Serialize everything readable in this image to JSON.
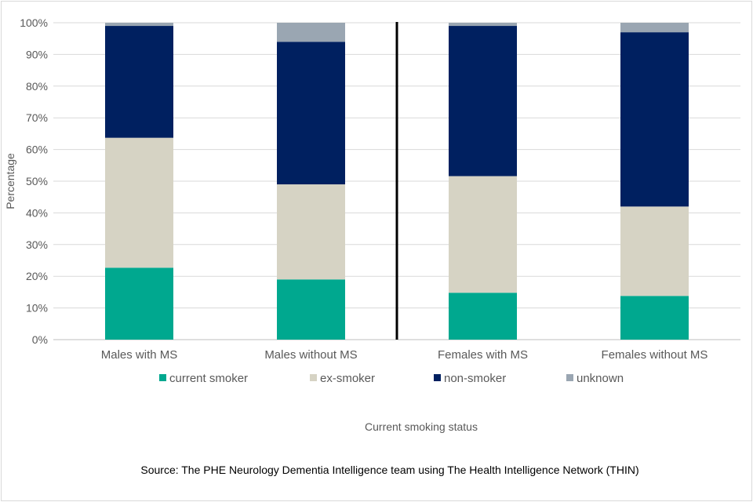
{
  "chart_data": {
    "type": "bar",
    "stacked": true,
    "categories": [
      "Males with MS",
      "Males without MS",
      "Females with MS",
      "Females without MS"
    ],
    "series": [
      {
        "name": "current smoker",
        "color": "#00a88f",
        "values": [
          22.7,
          19.0,
          14.8,
          13.8
        ]
      },
      {
        "name": "ex-smoker",
        "color": "#d6d3c4",
        "values": [
          41.0,
          30.0,
          36.8,
          28.2
        ]
      },
      {
        "name": "non-smoker",
        "color": "#002060",
        "values": [
          35.3,
          45.0,
          47.4,
          55.0
        ]
      },
      {
        "name": "unknown",
        "color": "#9aa6b2",
        "values": [
          1.0,
          6.0,
          1.0,
          3.0
        ]
      }
    ],
    "ylim": [
      0,
      100
    ],
    "yticks": [
      "0%",
      "10%",
      "20%",
      "30%",
      "40%",
      "50%",
      "60%",
      "70%",
      "80%",
      "90%",
      "100%"
    ],
    "ylabel": "Percentage",
    "xlabel": "Current smoking status",
    "grid": true,
    "legend": "bottom",
    "divider_after_category": 2
  },
  "source_note": "Source: The PHE Neurology Dementia Intelligence team using The Health Intelligence Network (THIN)"
}
